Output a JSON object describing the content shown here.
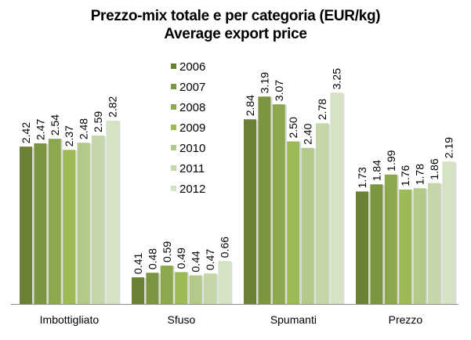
{
  "chart_data": {
    "type": "bar",
    "title": "Prezzo-mix totale e per categoria (EUR/kg)",
    "subtitle": "Average export price",
    "xlabel": "",
    "ylabel": "",
    "ylim": [
      0,
      3.25
    ],
    "grid": false,
    "legend_position": "center-left-top",
    "categories": [
      "Imbottigliato",
      "Sfuso",
      "Spumanti",
      "Prezzo"
    ],
    "series": [
      {
        "name": "2006",
        "color": "#6b8136",
        "values": [
          2.42,
          0.41,
          2.84,
          1.73
        ]
      },
      {
        "name": "2007",
        "color": "#7c9540",
        "values": [
          2.47,
          0.48,
          3.19,
          1.84
        ]
      },
      {
        "name": "2008",
        "color": "#8ca84c",
        "values": [
          2.54,
          0.59,
          3.07,
          1.99
        ]
      },
      {
        "name": "2009",
        "color": "#9cbb57",
        "values": [
          2.37,
          0.49,
          2.5,
          1.76
        ]
      },
      {
        "name": "2010",
        "color": "#b3c98a",
        "values": [
          2.48,
          0.44,
          2.4,
          1.78
        ]
      },
      {
        "name": "2011",
        "color": "#c5d7a8",
        "values": [
          2.59,
          0.47,
          2.78,
          1.86
        ]
      },
      {
        "name": "2012",
        "color": "#d6e2c4",
        "values": [
          2.82,
          0.66,
          3.25,
          2.19
        ]
      }
    ],
    "data_labels": true
  }
}
